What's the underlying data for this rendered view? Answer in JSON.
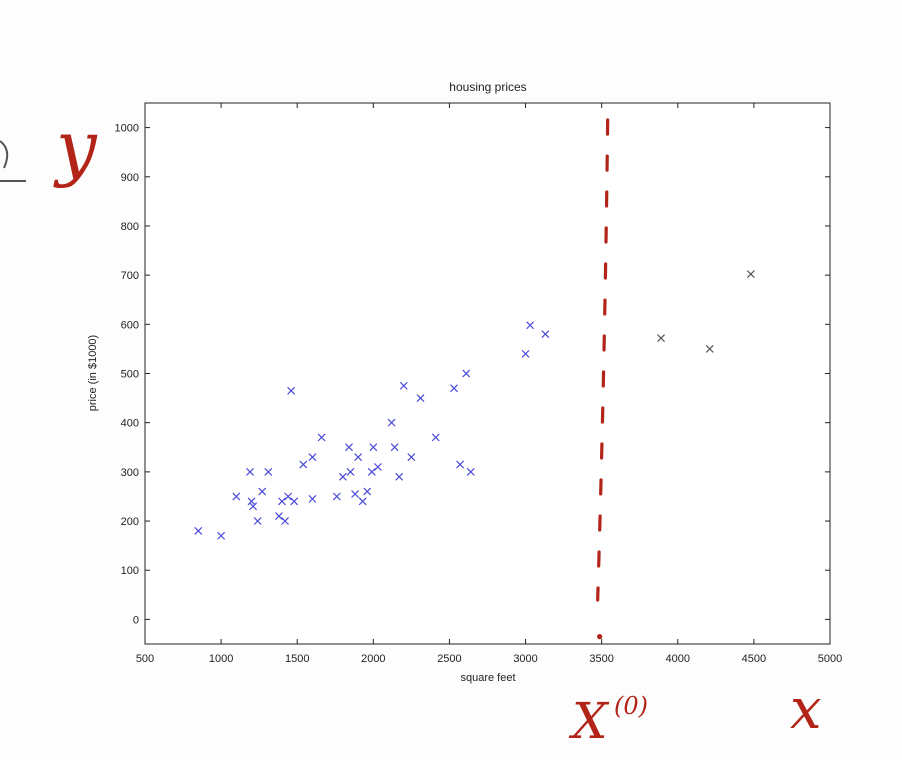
{
  "chart_data": {
    "type": "scatter",
    "title": "housing prices",
    "xlabel": "square feet",
    "ylabel": "price (in $1000)",
    "xlim": [
      500,
      5000
    ],
    "ylim": [
      -50,
      1050
    ],
    "xticks": [
      500,
      1000,
      1500,
      2000,
      2500,
      3000,
      3500,
      4000,
      4500,
      5000
    ],
    "yticks": [
      0,
      100,
      200,
      300,
      400,
      500,
      600,
      700,
      800,
      900,
      1000
    ],
    "grid": false,
    "series": [
      {
        "color": "#4a4ad8",
        "marker": "x",
        "points": [
          [
            850,
            180
          ],
          [
            1000,
            170
          ],
          [
            1100,
            250
          ],
          [
            1190,
            300
          ],
          [
            1200,
            240
          ],
          [
            1210,
            230
          ],
          [
            1240,
            200
          ],
          [
            1270,
            260
          ],
          [
            1310,
            300
          ],
          [
            1380,
            210
          ],
          [
            1400,
            240
          ],
          [
            1420,
            200
          ],
          [
            1440,
            250
          ],
          [
            1480,
            240
          ],
          [
            1540,
            315
          ],
          [
            1600,
            330
          ],
          [
            1600,
            245
          ],
          [
            1660,
            370
          ],
          [
            1760,
            250
          ],
          [
            1800,
            290
          ],
          [
            1840,
            350
          ],
          [
            1850,
            300
          ],
          [
            1880,
            255
          ],
          [
            1900,
            330
          ],
          [
            1930,
            240
          ],
          [
            1960,
            260
          ],
          [
            1990,
            300
          ],
          [
            2000,
            350
          ],
          [
            2030,
            310
          ],
          [
            2120,
            400
          ],
          [
            2140,
            350
          ],
          [
            2170,
            290
          ],
          [
            2200,
            475
          ],
          [
            2250,
            330
          ],
          [
            2310,
            450
          ],
          [
            2410,
            370
          ],
          [
            2530,
            470
          ],
          [
            2570,
            315
          ],
          [
            2610,
            500
          ],
          [
            2640,
            300
          ],
          [
            3000,
            540
          ],
          [
            3030,
            598
          ],
          [
            3130,
            580
          ],
          [
            1460,
            465
          ]
        ]
      },
      {
        "color": "#555555",
        "marker": "x",
        "points": [
          [
            3890,
            572
          ],
          [
            4210,
            550
          ],
          [
            4480,
            702
          ]
        ]
      }
    ],
    "query_point": {
      "x": 3500,
      "y": -35
    },
    "annotation_color": "#b32418"
  },
  "annotations": {
    "y_axis_symbol": "y",
    "x_axis_symbol": "x",
    "query_symbol": "X",
    "query_superscript": "(0)"
  }
}
